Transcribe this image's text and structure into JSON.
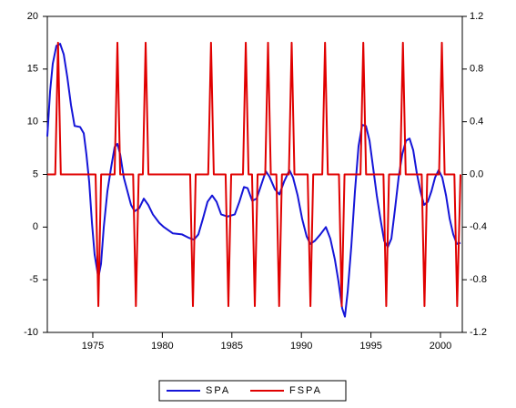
{
  "chart_data": {
    "type": "line",
    "xlim": [
      1971.73,
      2001.57
    ],
    "ylim": [
      -10,
      20
    ],
    "y2lim": [
      -1.2,
      1.2
    ],
    "xticks": [
      1975,
      1980,
      1985,
      1990,
      1995,
      2000
    ],
    "yticks": [
      20,
      15,
      10,
      5,
      0,
      -5,
      -10
    ],
    "y2ticks": [
      1.2,
      0.8,
      0.4,
      {
        "value": 0,
        "label": "0.0"
      },
      -0.4,
      -0.8,
      -1.2
    ],
    "legend": "bottom",
    "series": [
      {
        "name": "SPA",
        "color": "#1515d8",
        "x": [
          1971.73,
          1971.93,
          1972.12,
          1972.38,
          1972.65,
          1972.91,
          1973.17,
          1973.43,
          1973.69,
          1974.09,
          1974.35,
          1974.54,
          1974.74,
          1974.94,
          1975.13,
          1975.4,
          1975.59,
          1975.79,
          1976.05,
          1976.31,
          1976.57,
          1976.77,
          1976.97,
          1977.23,
          1977.49,
          1977.75,
          1978.01,
          1978.34,
          1978.67,
          1978.99,
          1979.32,
          1979.78,
          1980.11,
          1980.76,
          1981.42,
          1981.87,
          1982.27,
          1982.59,
          1982.92,
          1983.25,
          1983.58,
          1983.9,
          1984.23,
          1984.69,
          1985.21,
          1985.54,
          1985.87,
          1986.13,
          1986.46,
          1986.78,
          1987.11,
          1987.44,
          1987.7,
          1988.09,
          1988.42,
          1988.75,
          1989.14,
          1989.4,
          1989.73,
          1990.05,
          1990.38,
          1990.64,
          1990.97,
          1991.36,
          1991.76,
          1992.08,
          1992.41,
          1992.67,
          1992.93,
          1993.13,
          1993.33,
          1993.59,
          1993.85,
          1994.11,
          1994.37,
          1994.64,
          1994.9,
          1995.16,
          1995.42,
          1995.68,
          1995.95,
          1996.21,
          1996.47,
          1996.73,
          1996.99,
          1997.25,
          1997.52,
          1997.78,
          1998.04,
          1998.3,
          1998.56,
          1998.82,
          1999.09,
          1999.35,
          1999.61,
          1999.87,
          2000.13,
          2000.4,
          2000.66,
          2000.92,
          2001.18,
          2001.44
        ],
        "values": [
          8.6,
          12.9,
          15.5,
          17.2,
          17.4,
          16.4,
          14.2,
          11.6,
          9.6,
          9.5,
          8.9,
          6.9,
          4.3,
          0.4,
          -2.6,
          -4.8,
          -3.5,
          0,
          3.4,
          5.6,
          7.6,
          7.9,
          6.9,
          4.7,
          3.4,
          2.1,
          1.5,
          1.8,
          2.7,
          2.1,
          1.2,
          0.4,
          0,
          -0.6,
          -0.7,
          -1.0,
          -1.2,
          -0.7,
          0.8,
          2.4,
          3.0,
          2.4,
          1.2,
          1.0,
          1.2,
          2.4,
          3.8,
          3.7,
          2.5,
          2.7,
          4.0,
          5.3,
          4.8,
          3.6,
          3.1,
          4.3,
          5.4,
          4.7,
          3.0,
          0.8,
          -0.9,
          -1.6,
          -1.3,
          -0.7,
          0,
          -1.1,
          -3.1,
          -5.2,
          -7.7,
          -8.5,
          -6.1,
          -1.8,
          3.4,
          7.7,
          9.7,
          9.6,
          8.2,
          5.6,
          3.0,
          0.8,
          -1.3,
          -1.9,
          -1.1,
          1.7,
          4.7,
          6.9,
          8.2,
          8.4,
          7.3,
          5.1,
          3.4,
          2.1,
          2.4,
          3.4,
          4.7,
          5.4,
          4.7,
          3.0,
          0.8,
          -0.7,
          -1.6,
          -1.5
        ]
      },
      {
        "name": "FSPA",
        "color": "#e00000",
        "axis": "y2",
        "x": [
          1971.73,
          1972.3,
          1972.5,
          1972.7,
          1975.2,
          1975.4,
          1975.6,
          1976.57,
          1976.77,
          1976.97,
          1977.9,
          1978.1,
          1978.3,
          1978.6,
          1978.8,
          1979.0,
          1982.0,
          1982.2,
          1982.4,
          1983.3,
          1983.5,
          1983.7,
          1984.55,
          1984.75,
          1984.95,
          1985.8,
          1986.0,
          1986.2,
          1986.45,
          1986.65,
          1986.85,
          1987.4,
          1987.6,
          1987.8,
          1988.2,
          1988.4,
          1988.6,
          1989.1,
          1989.3,
          1989.5,
          1990.45,
          1990.65,
          1990.85,
          1991.5,
          1991.7,
          1991.9,
          1992.7,
          1992.9,
          1993.1,
          1994.25,
          1994.45,
          1994.65,
          1995.9,
          1996.1,
          1996.3,
          1997.1,
          1997.3,
          1997.5,
          1998.65,
          1998.85,
          1999.05,
          1999.9,
          2000.1,
          2000.3,
          2001.0,
          2001.2,
          2001.44
        ],
        "values": [
          0,
          0,
          1,
          0,
          0,
          -1,
          0,
          0,
          1,
          0,
          0,
          -1,
          0,
          0,
          1,
          0,
          0,
          -1,
          0,
          0,
          1,
          0,
          0,
          -1,
          0,
          0,
          1,
          0,
          0,
          -1,
          0,
          0,
          1,
          0,
          0,
          -1,
          0,
          0,
          1,
          0,
          0,
          -1,
          0,
          0,
          1,
          0,
          0,
          -1,
          0,
          0,
          1,
          0,
          0,
          -1,
          0,
          0,
          1,
          0,
          0,
          -1,
          0,
          0,
          1,
          0,
          0,
          -1,
          0
        ]
      }
    ]
  }
}
